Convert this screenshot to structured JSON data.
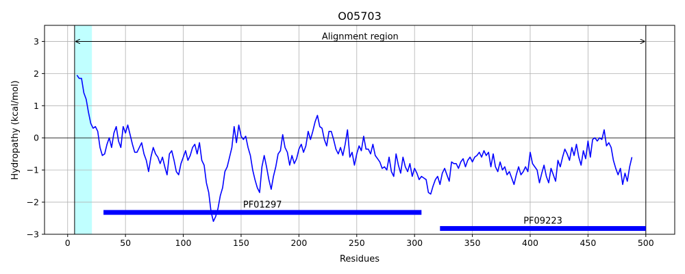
{
  "chart_data": {
    "type": "line",
    "title": "O05703",
    "xlabel": "Residues",
    "ylabel": "Hydropathy (kcal/mol)",
    "xlim": [
      -20,
      525
    ],
    "ylim": [
      -3,
      3.5
    ],
    "xticks": [
      0,
      50,
      100,
      150,
      200,
      250,
      300,
      350,
      400,
      450,
      500
    ],
    "yticks": [
      -3,
      -2,
      -1,
      0,
      1,
      2,
      3
    ],
    "grid": true,
    "line_color": "#0000ff",
    "series": [
      {
        "values": [
          [
            8,
            1.95
          ],
          [
            10,
            1.85
          ],
          [
            12,
            1.85
          ],
          [
            14,
            1.4
          ],
          [
            16,
            1.2
          ],
          [
            18,
            0.8
          ],
          [
            20,
            0.45
          ],
          [
            22,
            0.3
          ],
          [
            24,
            0.35
          ],
          [
            26,
            0.2
          ],
          [
            28,
            -0.3
          ],
          [
            30,
            -0.55
          ],
          [
            32,
            -0.5
          ],
          [
            34,
            -0.2
          ],
          [
            36,
            0.0
          ],
          [
            38,
            -0.3
          ],
          [
            40,
            0.15
          ],
          [
            42,
            0.35
          ],
          [
            44,
            -0.1
          ],
          [
            46,
            -0.3
          ],
          [
            48,
            0.35
          ],
          [
            50,
            0.15
          ],
          [
            52,
            0.4
          ],
          [
            54,
            0.1
          ],
          [
            56,
            -0.2
          ],
          [
            58,
            -0.45
          ],
          [
            60,
            -0.45
          ],
          [
            62,
            -0.3
          ],
          [
            64,
            -0.15
          ],
          [
            66,
            -0.5
          ],
          [
            68,
            -0.7
          ],
          [
            70,
            -1.05
          ],
          [
            72,
            -0.6
          ],
          [
            74,
            -0.3
          ],
          [
            76,
            -0.5
          ],
          [
            78,
            -0.6
          ],
          [
            80,
            -0.8
          ],
          [
            82,
            -0.6
          ],
          [
            84,
            -0.9
          ],
          [
            86,
            -1.15
          ],
          [
            88,
            -0.5
          ],
          [
            90,
            -0.4
          ],
          [
            92,
            -0.7
          ],
          [
            94,
            -1.05
          ],
          [
            96,
            -1.15
          ],
          [
            98,
            -0.8
          ],
          [
            100,
            -0.6
          ],
          [
            102,
            -0.4
          ],
          [
            104,
            -0.7
          ],
          [
            106,
            -0.55
          ],
          [
            108,
            -0.3
          ],
          [
            110,
            -0.2
          ],
          [
            112,
            -0.5
          ],
          [
            114,
            -0.15
          ],
          [
            116,
            -0.7
          ],
          [
            118,
            -0.85
          ],
          [
            120,
            -1.4
          ],
          [
            122,
            -1.7
          ],
          [
            124,
            -2.3
          ],
          [
            126,
            -2.6
          ],
          [
            128,
            -2.45
          ],
          [
            130,
            -2.2
          ],
          [
            132,
            -1.8
          ],
          [
            134,
            -1.55
          ],
          [
            136,
            -1.05
          ],
          [
            138,
            -0.9
          ],
          [
            140,
            -0.6
          ],
          [
            142,
            -0.3
          ],
          [
            144,
            0.35
          ],
          [
            146,
            -0.15
          ],
          [
            148,
            0.4
          ],
          [
            150,
            0.05
          ],
          [
            152,
            -0.05
          ],
          [
            154,
            0.05
          ],
          [
            156,
            -0.3
          ],
          [
            158,
            -0.55
          ],
          [
            160,
            -1.0
          ],
          [
            162,
            -1.3
          ],
          [
            164,
            -1.55
          ],
          [
            166,
            -1.7
          ],
          [
            168,
            -0.9
          ],
          [
            170,
            -0.55
          ],
          [
            172,
            -0.9
          ],
          [
            174,
            -1.3
          ],
          [
            176,
            -1.6
          ],
          [
            178,
            -1.2
          ],
          [
            180,
            -0.9
          ],
          [
            182,
            -0.5
          ],
          [
            184,
            -0.4
          ],
          [
            186,
            0.1
          ],
          [
            188,
            -0.3
          ],
          [
            190,
            -0.45
          ],
          [
            192,
            -0.85
          ],
          [
            194,
            -0.55
          ],
          [
            196,
            -0.8
          ],
          [
            198,
            -0.65
          ],
          [
            200,
            -0.35
          ],
          [
            202,
            -0.2
          ],
          [
            204,
            -0.45
          ],
          [
            206,
            -0.25
          ],
          [
            208,
            0.2
          ],
          [
            210,
            -0.05
          ],
          [
            212,
            0.2
          ],
          [
            214,
            0.5
          ],
          [
            216,
            0.7
          ],
          [
            218,
            0.35
          ],
          [
            220,
            0.3
          ],
          [
            222,
            -0.05
          ],
          [
            224,
            -0.25
          ],
          [
            226,
            0.2
          ],
          [
            228,
            0.2
          ],
          [
            230,
            -0.05
          ],
          [
            232,
            -0.35
          ],
          [
            234,
            -0.5
          ],
          [
            236,
            -0.3
          ],
          [
            238,
            -0.55
          ],
          [
            240,
            -0.2
          ],
          [
            242,
            0.25
          ],
          [
            244,
            -0.6
          ],
          [
            246,
            -0.45
          ],
          [
            248,
            -0.85
          ],
          [
            250,
            -0.5
          ],
          [
            252,
            -0.25
          ],
          [
            254,
            -0.4
          ],
          [
            256,
            0.05
          ],
          [
            258,
            -0.35
          ],
          [
            260,
            -0.35
          ],
          [
            262,
            -0.5
          ],
          [
            264,
            -0.2
          ],
          [
            266,
            -0.55
          ],
          [
            268,
            -0.65
          ],
          [
            270,
            -0.75
          ],
          [
            272,
            -0.95
          ],
          [
            274,
            -0.9
          ],
          [
            276,
            -1.0
          ],
          [
            278,
            -0.6
          ],
          [
            280,
            -1.05
          ],
          [
            282,
            -1.2
          ],
          [
            284,
            -0.5
          ],
          [
            286,
            -0.85
          ],
          [
            288,
            -1.1
          ],
          [
            290,
            -0.6
          ],
          [
            292,
            -0.9
          ],
          [
            294,
            -1.05
          ],
          [
            296,
            -0.8
          ],
          [
            298,
            -1.2
          ],
          [
            300,
            -0.95
          ],
          [
            302,
            -1.1
          ],
          [
            304,
            -1.3
          ],
          [
            306,
            -1.2
          ],
          [
            308,
            -1.25
          ],
          [
            310,
            -1.3
          ],
          [
            312,
            -1.7
          ],
          [
            314,
            -1.75
          ],
          [
            316,
            -1.5
          ],
          [
            318,
            -1.3
          ],
          [
            320,
            -1.2
          ],
          [
            322,
            -1.45
          ],
          [
            324,
            -1.1
          ],
          [
            326,
            -0.95
          ],
          [
            328,
            -1.15
          ],
          [
            330,
            -1.35
          ],
          [
            332,
            -0.75
          ],
          [
            334,
            -0.8
          ],
          [
            336,
            -0.8
          ],
          [
            338,
            -0.95
          ],
          [
            340,
            -0.75
          ],
          [
            342,
            -0.65
          ],
          [
            344,
            -0.9
          ],
          [
            346,
            -0.7
          ],
          [
            348,
            -0.6
          ],
          [
            350,
            -0.75
          ],
          [
            352,
            -0.6
          ],
          [
            354,
            -0.55
          ],
          [
            356,
            -0.45
          ],
          [
            358,
            -0.6
          ],
          [
            360,
            -0.4
          ],
          [
            362,
            -0.55
          ],
          [
            364,
            -0.45
          ],
          [
            366,
            -0.9
          ],
          [
            368,
            -0.5
          ],
          [
            370,
            -0.9
          ],
          [
            372,
            -1.05
          ],
          [
            374,
            -0.75
          ],
          [
            376,
            -1.0
          ],
          [
            378,
            -0.9
          ],
          [
            380,
            -1.15
          ],
          [
            382,
            -1.05
          ],
          [
            384,
            -1.25
          ],
          [
            386,
            -1.45
          ],
          [
            388,
            -1.15
          ],
          [
            390,
            -0.9
          ],
          [
            392,
            -1.15
          ],
          [
            394,
            -1.05
          ],
          [
            396,
            -0.9
          ],
          [
            398,
            -1.05
          ],
          [
            400,
            -0.45
          ],
          [
            402,
            -0.8
          ],
          [
            404,
            -0.9
          ],
          [
            406,
            -1.0
          ],
          [
            408,
            -1.4
          ],
          [
            410,
            -1.1
          ],
          [
            412,
            -0.85
          ],
          [
            414,
            -1.2
          ],
          [
            416,
            -1.4
          ],
          [
            418,
            -0.95
          ],
          [
            420,
            -1.15
          ],
          [
            422,
            -1.35
          ],
          [
            424,
            -0.7
          ],
          [
            426,
            -0.9
          ],
          [
            428,
            -0.6
          ],
          [
            430,
            -0.35
          ],
          [
            432,
            -0.5
          ],
          [
            434,
            -0.7
          ],
          [
            436,
            -0.3
          ],
          [
            438,
            -0.55
          ],
          [
            440,
            -0.2
          ],
          [
            442,
            -0.6
          ],
          [
            444,
            -0.85
          ],
          [
            446,
            -0.4
          ],
          [
            448,
            -0.65
          ],
          [
            450,
            -0.1
          ],
          [
            452,
            -0.6
          ],
          [
            454,
            -0.05
          ],
          [
            456,
            0.0
          ],
          [
            458,
            -0.1
          ],
          [
            460,
            0.0
          ],
          [
            462,
            -0.05
          ],
          [
            464,
            0.25
          ],
          [
            466,
            -0.25
          ],
          [
            468,
            -0.15
          ],
          [
            470,
            -0.3
          ],
          [
            472,
            -0.7
          ],
          [
            474,
            -0.95
          ],
          [
            476,
            -1.15
          ],
          [
            478,
            -0.95
          ],
          [
            480,
            -1.45
          ],
          [
            482,
            -1.1
          ],
          [
            484,
            -1.35
          ],
          [
            486,
            -0.9
          ],
          [
            488,
            -0.6
          ]
        ]
      }
    ],
    "region_shading": {
      "x_start": 6,
      "x_end": 21,
      "color": "#c0ffff"
    },
    "vertical_lines": [
      6,
      500
    ],
    "alignment_arrow": {
      "label": "Alignment region",
      "x_start": 6,
      "x_end": 500,
      "y": 3.0
    },
    "domains": [
      {
        "label": "PF01297",
        "x_start": 31,
        "x_end": 306,
        "y": -2.32,
        "color": "#0000ff"
      },
      {
        "label": "PF09223",
        "x_start": 322,
        "x_end": 500,
        "y": -2.82,
        "color": "#0000ff"
      }
    ]
  }
}
